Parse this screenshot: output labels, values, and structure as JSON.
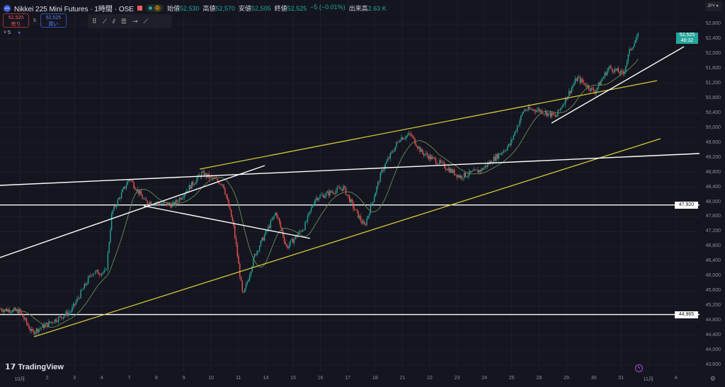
{
  "header": {
    "symbol_icon": "225",
    "title": "Nikkei 225 Mini Futures · 1時間 · OSE",
    "badge": "D",
    "ohlc": [
      {
        "label": "始値",
        "value": "52,530"
      },
      {
        "label": "高値",
        "value": "52,570"
      },
      {
        "label": "安値",
        "value": "52,505"
      },
      {
        "label": "終値",
        "value": "52,525"
      },
      {
        "label": "",
        "value": "−5 (−0.01%)"
      },
      {
        "label": "出来高",
        "value": "2.63 K"
      }
    ]
  },
  "trade": {
    "sell_price": "52,520",
    "sell_label": "売り",
    "spread": "5",
    "buy_price": "52,525",
    "buy_label": "買い"
  },
  "toolbar": {
    "icons": [
      "grip-icon",
      "trend-line-icon",
      "parallel-channel-icon",
      "fib-icon",
      "horizontal-ray-icon",
      "extended-line-icon"
    ]
  },
  "indicators": {
    "collapse_label": "˅ 5"
  },
  "axis": {
    "currency": "JPY",
    "last_price": "52,525",
    "countdown": "46:32",
    "price_labels": [
      "52,800",
      "52,400",
      "52,000",
      "51,600",
      "51,200",
      "50,800",
      "50,400",
      "50,000",
      "49,600",
      "49,200",
      "48,800",
      "48,400",
      "48,000",
      "47,600",
      "47,200",
      "46,800",
      "46,400",
      "46,000",
      "45,600",
      "45,200",
      "44,800",
      "44,400",
      "44,000",
      "43,600"
    ],
    "levels": [
      {
        "price": 47920,
        "label": "47,920"
      },
      {
        "price": 44965,
        "label": "44,965"
      }
    ]
  },
  "time_labels": [
    "10月",
    "2",
    "3",
    "4",
    "7",
    "8",
    "9",
    "10",
    "11",
    "14",
    "15",
    "16",
    "17",
    "18",
    "21",
    "22",
    "23",
    "24",
    "25",
    "28",
    "29",
    "30",
    "31",
    "11月",
    "4"
  ],
  "branding": "TradingView",
  "colors": {
    "up": "#26a69a",
    "down": "#ef5350",
    "ma": "#6b8e5a",
    "channel": "#d4c73a",
    "trend": "#ffffff"
  },
  "chart_data": {
    "type": "candlestick",
    "ylim": [
      43400,
      53000
    ],
    "path": [
      [
        -0.7,
        45110
      ],
      [
        0,
        45050
      ],
      [
        0.44,
        44480
      ],
      [
        1.86,
        45050
      ],
      [
        2.64,
        46100
      ],
      [
        3.15,
        46100
      ],
      [
        3.36,
        47720
      ],
      [
        4.0,
        48640
      ],
      [
        4.57,
        48010
      ],
      [
        5.61,
        47920
      ],
      [
        6.64,
        48770
      ],
      [
        7.42,
        48490
      ],
      [
        7.8,
        47340
      ],
      [
        8.14,
        45430
      ],
      [
        8.58,
        46580
      ],
      [
        9.35,
        47720
      ],
      [
        9.74,
        46770
      ],
      [
        10.39,
        47340
      ],
      [
        10.78,
        48100
      ],
      [
        11.81,
        48390
      ],
      [
        12.2,
        47820
      ],
      [
        12.58,
        47340
      ],
      [
        13.23,
        48870
      ],
      [
        13.88,
        49730
      ],
      [
        14.26,
        49820
      ],
      [
        14.65,
        49350
      ],
      [
        15.3,
        49060
      ],
      [
        16.07,
        48680
      ],
      [
        16.85,
        48870
      ],
      [
        17.88,
        49540
      ],
      [
        18.4,
        50490
      ],
      [
        18.91,
        50490
      ],
      [
        19.56,
        50300
      ],
      [
        20.34,
        51350
      ],
      [
        20.98,
        50970
      ],
      [
        21.5,
        51630
      ],
      [
        22.02,
        51450
      ],
      [
        22.27,
        52110
      ],
      [
        22.58,
        52490
      ]
    ]
  }
}
